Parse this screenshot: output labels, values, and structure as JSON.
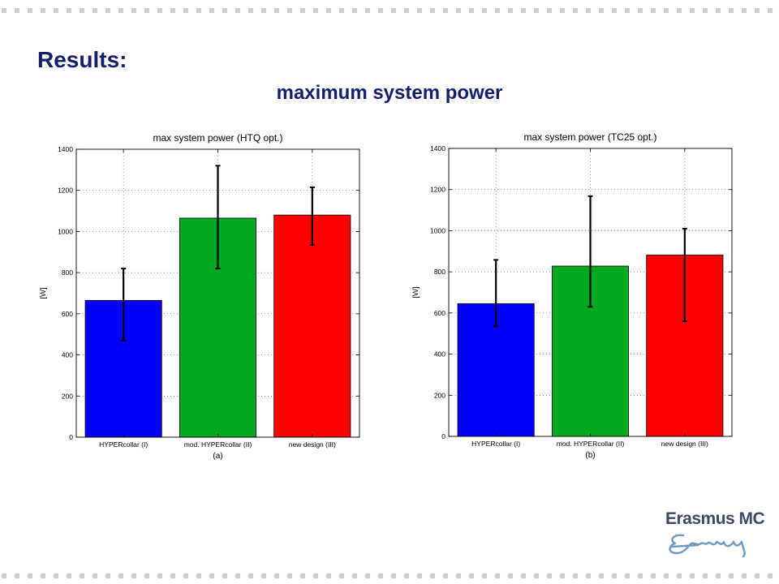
{
  "slide": {
    "title": "Results:",
    "subtitle": "maximum system power"
  },
  "logo": {
    "text": "Erasmus MC",
    "signature": "Erasmus"
  },
  "colors": {
    "title": "#14206e",
    "decor_dots": "#c7cbe0",
    "bar_1": "#0000ff",
    "bar_2": "#00aa1e",
    "bar_3": "#ff0000"
  },
  "chart_data": [
    {
      "type": "bar",
      "title": "max system power (HTQ opt.)",
      "ylabel": "[W]",
      "xlabel": "(a)",
      "categories": [
        "HYPERcollar (I)",
        "mod. HYPERcollar (II)",
        "new design (III)"
      ],
      "values": [
        665,
        1065,
        1080
      ],
      "error_low": [
        470,
        820,
        935
      ],
      "error_high": [
        820,
        1320,
        1215
      ],
      "ylim": [
        0,
        1400
      ],
      "yticks": [
        0,
        200,
        400,
        600,
        800,
        1000,
        1200,
        1400
      ],
      "grid": true,
      "legend": "none"
    },
    {
      "type": "bar",
      "title": "max system power (TC25 opt.)",
      "ylabel": "[W]",
      "xlabel": "(b)",
      "categories": [
        "HYPERcollar (I)",
        "mod. HYPERcollar (II)",
        "new design (III)"
      ],
      "values": [
        645,
        828,
        882
      ],
      "error_low": [
        535,
        630,
        560
      ],
      "error_high": [
        858,
        1168,
        1010
      ],
      "ylim": [
        0,
        1400
      ],
      "yticks": [
        0,
        200,
        400,
        600,
        800,
        1000,
        1200,
        1400
      ],
      "grid": true,
      "legend": "none"
    }
  ]
}
